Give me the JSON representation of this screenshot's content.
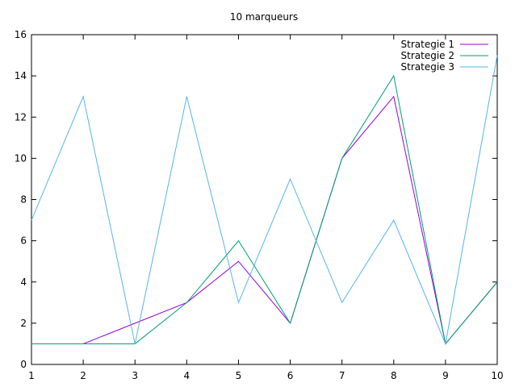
{
  "chart_data": {
    "type": "line",
    "title": "10 marqueurs",
    "xlabel": "",
    "ylabel": "",
    "xlim": [
      1,
      10
    ],
    "ylim": [
      0,
      16
    ],
    "xticks": [
      1,
      2,
      3,
      4,
      5,
      6,
      7,
      8,
      9,
      10
    ],
    "yticks": [
      0,
      2,
      4,
      6,
      8,
      10,
      12,
      14,
      16
    ],
    "grid": false,
    "legend_position": "top-right",
    "x": [
      1,
      2,
      3,
      4,
      5,
      6,
      7,
      8,
      9,
      10
    ],
    "series": [
      {
        "name": "Strategie 1",
        "color": "#9400d3",
        "values": [
          1,
          1,
          2,
          3,
          5,
          2,
          10,
          13,
          1,
          4
        ]
      },
      {
        "name": "Strategie 2",
        "color": "#009e73",
        "values": [
          1,
          1,
          1,
          3,
          6,
          2,
          10,
          14,
          1,
          4
        ]
      },
      {
        "name": "Strategie 3",
        "color": "#56b4e9",
        "values": [
          7,
          13,
          1,
          13,
          3,
          9,
          3,
          7,
          1,
          15
        ]
      }
    ]
  }
}
